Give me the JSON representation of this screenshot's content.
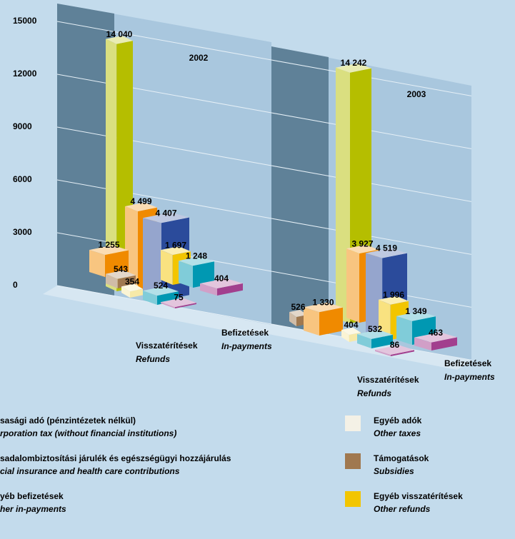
{
  "chart_data": {
    "type": "bar3d",
    "ylim": [
      0,
      15000
    ],
    "yticks": [
      0,
      3000,
      6000,
      9000,
      12000,
      15000
    ],
    "panels": [
      {
        "title": "2002",
        "rows": [
          {
            "name": "Befizetések",
            "name_en": "In-payments",
            "values": [
              14040,
              4499,
              4407,
              1697,
              1248,
              404
            ],
            "value_labels": [
              "14 040",
              "4 499",
              "4 407",
              "1 697",
              "1 248",
              "404"
            ],
            "colors": [
              "#b5be00",
              "#f08a00",
              "#2b4b9b",
              "#f2c500",
              "#0098b2",
              "#a23f8e"
            ]
          },
          {
            "name": "Visszatérítések",
            "name_en": "Refunds",
            "values": [
              1255,
              543,
              354,
              524,
              75
            ],
            "value_labels": [
              "1 255",
              "543",
              "354",
              "524",
              "75"
            ],
            "colors": [
              "#f08a00",
              "#a0784f",
              "#f6e9a8",
              "#0098b2",
              "#a23f8e"
            ]
          }
        ]
      },
      {
        "title": "2003",
        "rows": [
          {
            "name": "Befizetések",
            "name_en": "In-payments",
            "values": [
              14242,
              3927,
              4519,
              1996,
              1349,
              463
            ],
            "value_labels": [
              "14 242",
              "3 927",
              "4 519",
              "1 996",
              "1 349",
              "463"
            ],
            "colors": [
              "#b5be00",
              "#f08a00",
              "#2b4b9b",
              "#f2c500",
              "#0098b2",
              "#a23f8e"
            ]
          },
          {
            "name": "Visszatérítések",
            "name_en": "Refunds",
            "values": [
              526,
              1330,
              404,
              532,
              86
            ],
            "value_labels": [
              "526",
              "1 330",
              "404",
              "532",
              "86"
            ],
            "colors": [
              "#a0784f",
              "#f08a00",
              "#f6e9a8",
              "#0098b2",
              "#a23f8e"
            ]
          }
        ]
      }
    ],
    "legend": [
      {
        "name": "sasági adó (pénzintézetek nélkül)",
        "name_en": "rporation tax (without financial institutions)"
      },
      {
        "name": "Egyéb adók",
        "name_en": "Other taxes",
        "color": "#f4f1e6"
      },
      {
        "name": "sadalombiztosítási járulék és egészségügyi hozzájárulás",
        "name_en": "cial insurance and health care contributions"
      },
      {
        "name": "Támogatások",
        "name_en": "Subsidies",
        "color": "#a0784f"
      },
      {
        "name": "yéb befizetések",
        "name_en": "her in-payments"
      },
      {
        "name": "Egyéb visszatérítések",
        "name_en": "Other refunds",
        "color": "#f2c500"
      }
    ]
  }
}
